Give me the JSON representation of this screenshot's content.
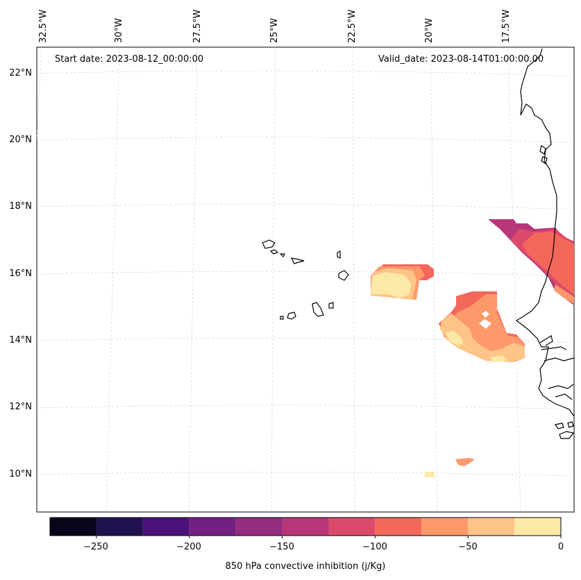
{
  "map": {
    "start_date": "Start date: 2023-08-12_00:00:00",
    "valid_date": "Valid_date: 2023-08-14T01:00:00.00",
    "lon_labels": [
      "32.5°W",
      "30°W",
      "27.5°W",
      "25°W",
      "22.5°W",
      "20°W",
      "17.5°W"
    ],
    "lat_labels": [
      "22°N",
      "20°N",
      "18°N",
      "16°N",
      "14°N",
      "12°N",
      "10°N"
    ]
  },
  "colorbar": {
    "title": "850 hPa convective inhibition (j/Kg)",
    "tick_labels": [
      "−250",
      "−200",
      "−150",
      "−100",
      "−50",
      "0"
    ],
    "levels": [
      -275,
      -250,
      -225,
      -200,
      -175,
      -150,
      -125,
      -100,
      -75,
      -50,
      -25,
      0
    ],
    "colors": [
      "#07051a",
      "#21114e",
      "#4d117a",
      "#741f82",
      "#942c80",
      "#b73779",
      "#dc4a6b",
      "#f3685b",
      "#fe9a6a",
      "#fec488",
      "#fce9a8"
    ]
  }
}
